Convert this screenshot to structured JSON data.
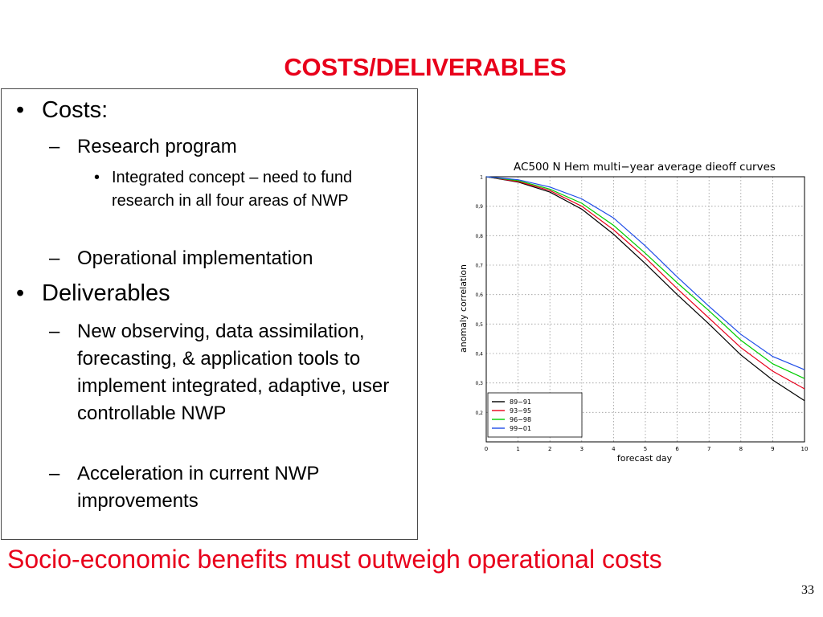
{
  "slide": {
    "title": "COSTS/DELIVERABLES",
    "footer_note": "Socio-economic benefits must outweigh operational costs",
    "page_number": "33",
    "accent_color": "#e8001b"
  },
  "content": {
    "costs_label": "Costs:",
    "research_program": "Research program",
    "integrated_concept": "Integrated concept – need to fund research in all four areas of NWP",
    "operational_implementation": "Operational implementation",
    "deliverables_label": "Deliverables",
    "new_tools": "New observing, data assimilation, forecasting, & application tools to implement integrated, adaptive, user controllable NWP",
    "acceleration": "Acceleration in current NWP improvements"
  },
  "chart_data": {
    "type": "line",
    "title": "AC500 N Hem multi−year average dieoff curves",
    "xlabel": "forecast day",
    "ylabel": "anomaly correlation",
    "xlim": [
      0,
      10
    ],
    "ylim": [
      0.1,
      1.0
    ],
    "x_ticks": [
      0,
      1,
      2,
      3,
      4,
      5,
      6,
      7,
      8,
      9,
      10
    ],
    "y_ticks": [
      0.2,
      0.3,
      0.4,
      0.5,
      0.6,
      0.7,
      0.8,
      0.9,
      1
    ],
    "y_tick_labels": [
      "0,2",
      "0,3",
      "0,4",
      "0,5",
      "0,6",
      "0,7",
      "0,8",
      "0,9",
      "1"
    ],
    "grid": true,
    "legend": "bottom-left",
    "x": [
      0,
      1,
      2,
      3,
      4,
      5,
      6,
      7,
      8,
      9,
      10
    ],
    "series": [
      {
        "name": "89−91",
        "color": "#000000",
        "values": [
          1.0,
          0.982,
          0.948,
          0.89,
          0.805,
          0.705,
          0.6,
          0.5,
          0.395,
          0.31,
          0.24
        ]
      },
      {
        "name": "93−95",
        "color": "#e8001b",
        "values": [
          1.0,
          0.984,
          0.953,
          0.9,
          0.82,
          0.725,
          0.62,
          0.52,
          0.42,
          0.34,
          0.28
        ]
      },
      {
        "name": "96−98",
        "color": "#00cc00",
        "values": [
          1.0,
          0.987,
          0.958,
          0.91,
          0.835,
          0.74,
          0.64,
          0.545,
          0.445,
          0.365,
          0.315
        ]
      },
      {
        "name": "99−01",
        "color": "#1f4de8",
        "values": [
          1.0,
          0.99,
          0.965,
          0.925,
          0.86,
          0.765,
          0.66,
          0.56,
          0.465,
          0.39,
          0.345
        ]
      }
    ]
  }
}
